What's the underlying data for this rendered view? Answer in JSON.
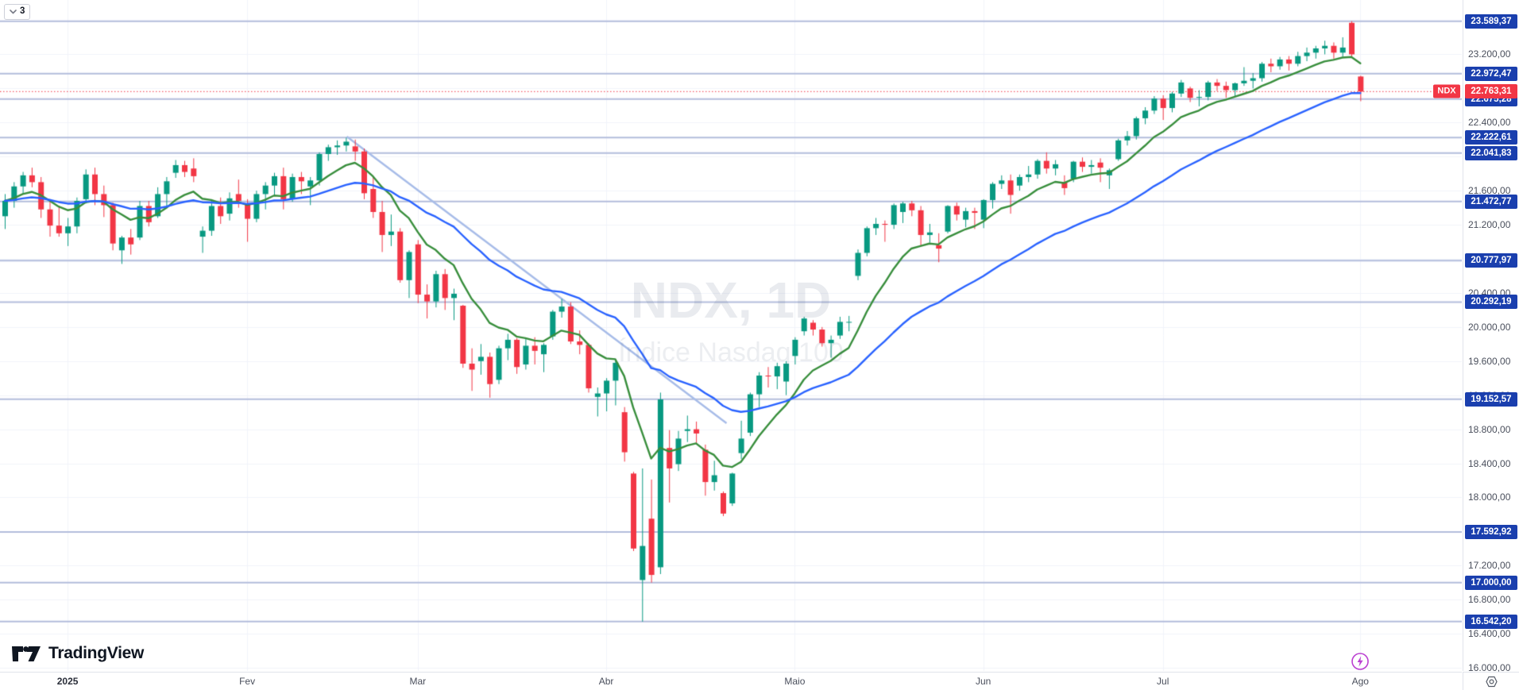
{
  "toolbar": {
    "drawings_count": "3"
  },
  "watermark": {
    "title": "NDX, 1D",
    "subtitle": "Índice Nasdaq 100"
  },
  "logo": {
    "text": "TradingView"
  },
  "colors": {
    "candle_up": "#089981",
    "candle_down": "#f23645",
    "ma_fast": "#388e3c",
    "ma_slow": "#2962ff",
    "level_line": "#b3bddc",
    "level_badge": "#1a3fae",
    "last_price": "#f23645",
    "trendline": "#a7bce8",
    "grid": "#f0f3fa",
    "axis_text": "#4a4f5c",
    "border": "#e0e3eb"
  },
  "price_axis": {
    "ticks": [
      {
        "value": 23200,
        "label": "23.200,00"
      },
      {
        "value": 22400,
        "label": "22.400,00"
      },
      {
        "value": 21600,
        "label": "21.600,00"
      },
      {
        "value": 21200,
        "label": "21.200,00"
      },
      {
        "value": 20400,
        "label": "20.400,00"
      },
      {
        "value": 20000,
        "label": "20.000,00"
      },
      {
        "value": 19600,
        "label": "19.600,00"
      },
      {
        "value": 19200,
        "label": "19.200,00"
      },
      {
        "value": 18800,
        "label": "18.800,00"
      },
      {
        "value": 18400,
        "label": "18.400,00"
      },
      {
        "value": 18000,
        "label": "18.000,00"
      },
      {
        "value": 17200,
        "label": "17.200,00"
      },
      {
        "value": 16800,
        "label": "16.800,00"
      },
      {
        "value": 16400,
        "label": "16.400,00"
      },
      {
        "value": 16000,
        "label": "16.000,00"
      }
    ],
    "levels": [
      {
        "value": 23589.37,
        "label": "23.589,37"
      },
      {
        "value": 22972.47,
        "label": "22.972,47"
      },
      {
        "value": 22675.28,
        "label": "22.675,28"
      },
      {
        "value": 22222.61,
        "label": "22.222,61"
      },
      {
        "value": 22041.83,
        "label": "22.041,83"
      },
      {
        "value": 21472.77,
        "label": "21.472,77"
      },
      {
        "value": 20777.97,
        "label": "20.777,97"
      },
      {
        "value": 20292.19,
        "label": "20.292,19"
      },
      {
        "value": 19152.57,
        "label": "19.152,57"
      },
      {
        "value": 17592.92,
        "label": "17.592,92"
      },
      {
        "value": 17000.0,
        "label": "17.000,00"
      },
      {
        "value": 16542.2,
        "label": "16.542,20"
      }
    ],
    "last_price": {
      "value": 22763.31,
      "label": "22.763,31",
      "tag": "NDX"
    }
  },
  "time_axis": {
    "ticks": [
      {
        "index": 7,
        "label": "2025",
        "bold": true
      },
      {
        "index": 27,
        "label": "Fev"
      },
      {
        "index": 46,
        "label": "Mar"
      },
      {
        "index": 67,
        "label": "Abr"
      },
      {
        "index": 88,
        "label": "Maio"
      },
      {
        "index": 109,
        "label": "Jun"
      },
      {
        "index": 129,
        "label": "Jul"
      },
      {
        "index": 151,
        "label": "Ago"
      }
    ]
  },
  "chart_data": {
    "type": "candlestick",
    "symbol": "NDX",
    "timeframe": "1D",
    "title": "NDX, 1D",
    "subtitle": "Índice Nasdaq 100",
    "ylim": [
      15963,
      23838
    ],
    "grid_step": 400,
    "grid_min": 16000,
    "grid_max": 23200,
    "current_price": 22763.31,
    "trendline": {
      "index1": 38.1,
      "price1": 22235,
      "index2": 80.4,
      "price2": 18870
    },
    "overlays": [
      {
        "name": "ma-fast",
        "type": "ema",
        "period": 10,
        "color": "#388e3c"
      },
      {
        "name": "ma-slow",
        "type": "ema",
        "period": 30,
        "color": "#2962ff"
      }
    ],
    "candles": [
      [
        21300,
        21560,
        21150,
        21480
      ],
      [
        21480,
        21700,
        21400,
        21650
      ],
      [
        21650,
        21820,
        21560,
        21780
      ],
      [
        21780,
        21870,
        21640,
        21700
      ],
      [
        21700,
        21760,
        21280,
        21380
      ],
      [
        21380,
        21500,
        21060,
        21190
      ],
      [
        21190,
        21420,
        21060,
        21100
      ],
      [
        21100,
        21280,
        20950,
        21180
      ],
      [
        21180,
        21520,
        21100,
        21480
      ],
      [
        21500,
        21850,
        21450,
        21790
      ],
      [
        21790,
        21870,
        21430,
        21560
      ],
      [
        21560,
        21660,
        21290,
        21430
      ],
      [
        21430,
        21460,
        20900,
        20980
      ],
      [
        20900,
        21070,
        20740,
        21050
      ],
      [
        21050,
        21150,
        20850,
        20970
      ],
      [
        21050,
        21480,
        21020,
        21420
      ],
      [
        21420,
        21480,
        21180,
        21230
      ],
      [
        21300,
        21640,
        21280,
        21560
      ],
      [
        21560,
        21760,
        21420,
        21710
      ],
      [
        21810,
        21960,
        21750,
        21900
      ],
      [
        21900,
        21950,
        21760,
        21820
      ],
      [
        21860,
        21980,
        21700,
        21770
      ],
      [
        21060,
        21180,
        20870,
        21130
      ],
      [
        21130,
        21480,
        21070,
        21420
      ],
      [
        21420,
        21520,
        21210,
        21300
      ],
      [
        21330,
        21580,
        21250,
        21510
      ],
      [
        21560,
        21730,
        21400,
        21480
      ],
      [
        21450,
        21500,
        21000,
        21270
      ],
      [
        21270,
        21600,
        21230,
        21560
      ],
      [
        21560,
        21700,
        21380,
        21660
      ],
      [
        21660,
        21810,
        21550,
        21770
      ],
      [
        21770,
        21870,
        21380,
        21500
      ],
      [
        21500,
        21800,
        21470,
        21760
      ],
      [
        21760,
        21820,
        21560,
        21710
      ],
      [
        21650,
        21760,
        21430,
        21720
      ],
      [
        21720,
        22050,
        21660,
        22030
      ],
      [
        22030,
        22140,
        21950,
        22110
      ],
      [
        22110,
        22190,
        22020,
        22130
      ],
      [
        22130,
        22222,
        22060,
        22175
      ],
      [
        22120,
        22200,
        21950,
        22060
      ],
      [
        22060,
        22095,
        21500,
        21570
      ],
      [
        21620,
        21770,
        21280,
        21350
      ],
      [
        21350,
        21480,
        20880,
        21080
      ],
      [
        21080,
        21320,
        20950,
        21120
      ],
      [
        21120,
        21160,
        20520,
        20550
      ],
      [
        20550,
        20900,
        20340,
        20880
      ],
      [
        20970,
        21020,
        20280,
        20380
      ],
      [
        20380,
        20500,
        20100,
        20300
      ],
      [
        20300,
        20660,
        20230,
        20620
      ],
      [
        20620,
        20680,
        20200,
        20340
      ],
      [
        20340,
        20450,
        20080,
        20390
      ],
      [
        20250,
        20260,
        19520,
        19570
      ],
      [
        19570,
        19750,
        19250,
        19500
      ],
      [
        19600,
        19800,
        19440,
        19650
      ],
      [
        19650,
        19700,
        19170,
        19330
      ],
      [
        19380,
        19780,
        19330,
        19750
      ],
      [
        19750,
        19920,
        19610,
        19850
      ],
      [
        19850,
        19870,
        19450,
        19530
      ],
      [
        19560,
        19860,
        19500,
        19780
      ],
      [
        19780,
        19880,
        19560,
        19720
      ],
      [
        19680,
        19810,
        19470,
        19790
      ],
      [
        19890,
        20200,
        19850,
        20180
      ],
      [
        20180,
        20330,
        20110,
        20240
      ],
      [
        20240,
        20290,
        19800,
        19830
      ],
      [
        19830,
        19960,
        19680,
        19790
      ],
      [
        19790,
        19810,
        19230,
        19280
      ],
      [
        19180,
        19290,
        18950,
        19220
      ],
      [
        19220,
        19400,
        19010,
        19370
      ],
      [
        19370,
        19620,
        19080,
        19580
      ],
      [
        19000,
        19060,
        18420,
        18530
      ],
      [
        18280,
        18300,
        17370,
        17400
      ],
      [
        17030,
        18340,
        16542,
        17430
      ],
      [
        17750,
        18210,
        17000,
        17090
      ],
      [
        17180,
        19230,
        17100,
        19150
      ],
      [
        18580,
        18790,
        17940,
        18340
      ],
      [
        18390,
        18780,
        18310,
        18690
      ],
      [
        18780,
        18960,
        18650,
        18800
      ],
      [
        18800,
        18890,
        18620,
        18750
      ],
      [
        18560,
        18620,
        18020,
        18180
      ],
      [
        18180,
        18430,
        18080,
        18260
      ],
      [
        18050,
        18070,
        17780,
        17810
      ],
      [
        17930,
        18290,
        17900,
        18280
      ],
      [
        18520,
        18900,
        18450,
        18690
      ],
      [
        18760,
        19230,
        18720,
        19210
      ],
      [
        19210,
        19470,
        19060,
        19430
      ],
      [
        19430,
        19530,
        19290,
        19420
      ],
      [
        19420,
        19580,
        19270,
        19540
      ],
      [
        19360,
        19600,
        19200,
        19570
      ],
      [
        19660,
        19880,
        19560,
        19850
      ],
      [
        19950,
        20120,
        19900,
        20100
      ],
      [
        20050,
        20080,
        19900,
        19970
      ],
      [
        19970,
        20000,
        19770,
        19810
      ],
      [
        19810,
        19900,
        19640,
        19850
      ],
      [
        19900,
        20120,
        19860,
        20060
      ],
      [
        20060,
        20130,
        19950,
        20060
      ],
      [
        20600,
        20910,
        20550,
        20870
      ],
      [
        20870,
        21180,
        20830,
        21160
      ],
      [
        21160,
        21280,
        21080,
        21210
      ],
      [
        21210,
        21250,
        21000,
        21200
      ],
      [
        21200,
        21450,
        21150,
        21430
      ],
      [
        21350,
        21470,
        21220,
        21450
      ],
      [
        21450,
        21480,
        21300,
        21370
      ],
      [
        21370,
        21420,
        20950,
        21080
      ],
      [
        21080,
        21210,
        20990,
        21110
      ],
      [
        20960,
        21100,
        20760,
        20920
      ],
      [
        21120,
        21430,
        21100,
        21420
      ],
      [
        21420,
        21460,
        21250,
        21320
      ],
      [
        21260,
        21400,
        21170,
        21360
      ],
      [
        21360,
        21400,
        21150,
        21340
      ],
      [
        21260,
        21500,
        21160,
        21490
      ],
      [
        21490,
        21700,
        21390,
        21680
      ],
      [
        21680,
        21780,
        21620,
        21720
      ],
      [
        21720,
        21790,
        21330,
        21550
      ],
      [
        21660,
        21790,
        21600,
        21760
      ],
      [
        21760,
        21890,
        21700,
        21790
      ],
      [
        21790,
        21970,
        21740,
        21950
      ],
      [
        21950,
        22050,
        21800,
        21860
      ],
      [
        21860,
        21960,
        21780,
        21910
      ],
      [
        21700,
        21780,
        21550,
        21630
      ],
      [
        21740,
        21950,
        21700,
        21940
      ],
      [
        21940,
        21990,
        21820,
        21880
      ],
      [
        21880,
        21960,
        21800,
        21900
      ],
      [
        21930,
        21980,
        21700,
        21870
      ],
      [
        21780,
        21860,
        21620,
        21840
      ],
      [
        21970,
        22210,
        21950,
        22190
      ],
      [
        22190,
        22300,
        22130,
        22240
      ],
      [
        22240,
        22470,
        22200,
        22450
      ],
      [
        22450,
        22580,
        22380,
        22540
      ],
      [
        22540,
        22710,
        22500,
        22680
      ],
      [
        22680,
        22720,
        22430,
        22570
      ],
      [
        22570,
        22760,
        22520,
        22740
      ],
      [
        22740,
        22900,
        22700,
        22870
      ],
      [
        22800,
        22820,
        22640,
        22690
      ],
      [
        22690,
        22780,
        22590,
        22700
      ],
      [
        22700,
        22890,
        22660,
        22870
      ],
      [
        22870,
        22910,
        22770,
        22830
      ],
      [
        22830,
        22880,
        22690,
        22780
      ],
      [
        22780,
        22870,
        22700,
        22860
      ],
      [
        22860,
        23050,
        22830,
        22890
      ],
      [
        22890,
        22980,
        22800,
        22920
      ],
      [
        22920,
        23110,
        22880,
        23090
      ],
      [
        23090,
        23150,
        22990,
        23060
      ],
      [
        23060,
        23170,
        23020,
        23140
      ],
      [
        23140,
        23180,
        23010,
        23090
      ],
      [
        23090,
        23230,
        23060,
        23180
      ],
      [
        23180,
        23280,
        23120,
        23220
      ],
      [
        23220,
        23300,
        23150,
        23270
      ],
      [
        23270,
        23360,
        23200,
        23300
      ],
      [
        23300,
        23340,
        23150,
        23220
      ],
      [
        23220,
        23400,
        23170,
        23280
      ],
      [
        23570,
        23589,
        23160,
        23200
      ],
      [
        22940,
        22950,
        22650,
        22763
      ]
    ]
  }
}
